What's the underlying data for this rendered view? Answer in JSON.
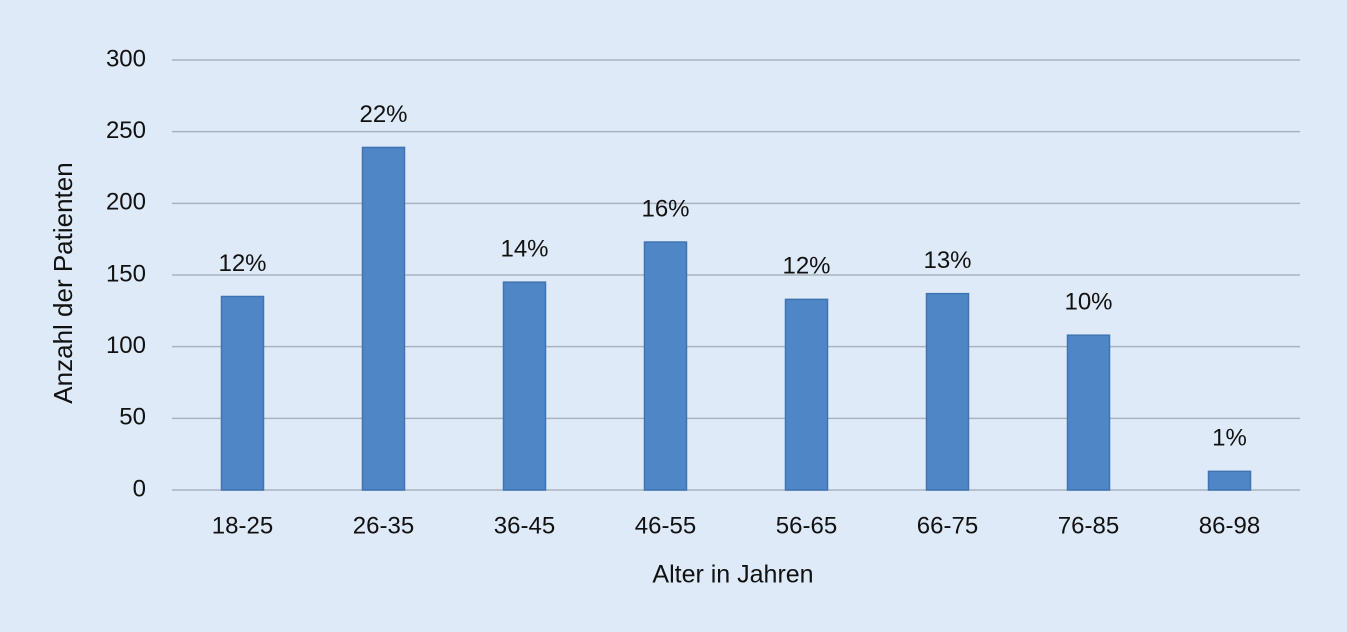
{
  "chart_data": {
    "type": "bar",
    "x_label": "Alter in Jahren",
    "y_label": "Anzahl der Patienten",
    "categories": [
      "18-25",
      "26-35",
      "36-45",
      "46-55",
      "56-65",
      "66-75",
      "76-85",
      "86-98"
    ],
    "values": [
      135,
      239,
      145,
      173,
      133,
      137,
      108,
      13
    ],
    "percent_labels": [
      "12%",
      "22%",
      "14%",
      "16%",
      "12%",
      "13%",
      "10%",
      "1%"
    ],
    "color": "#4f86c6",
    "ylim": [
      0,
      300
    ],
    "yticks": [
      0,
      50,
      100,
      150,
      200,
      250,
      300
    ],
    "grid": true
  }
}
